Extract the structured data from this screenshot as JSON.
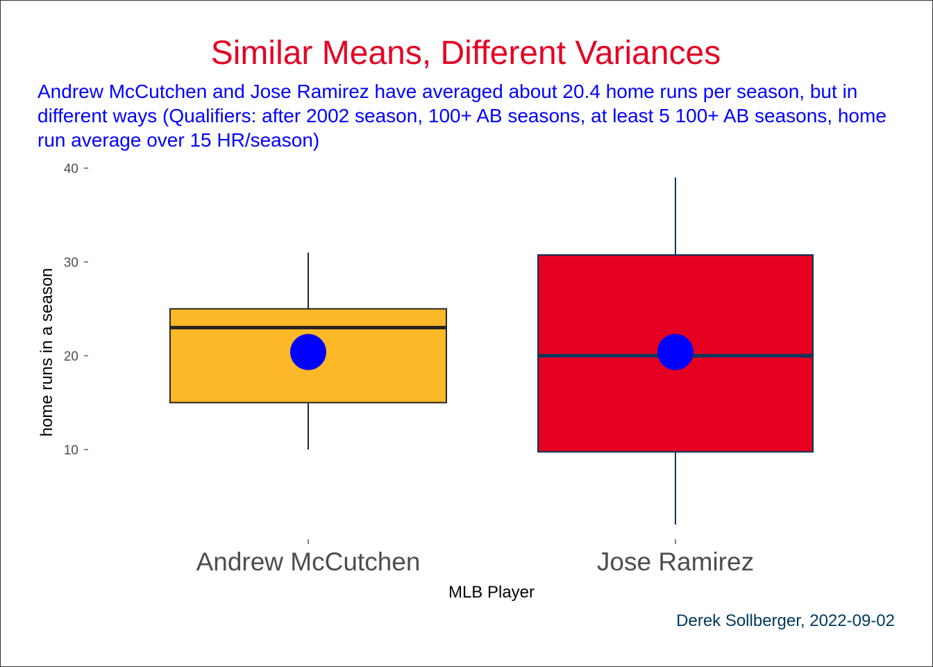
{
  "chart_data": {
    "type": "boxplot",
    "title": "Similar Means, Different Variances",
    "subtitle": "Andrew McCutchen and Jose Ramirez have averaged about 20.4 home runs per season, but in different ways (Qualifiers: after 2002 season, 100+ AB seasons, at least 5 100+ AB seasons, home run average over 15 HR/season)",
    "xlabel": "MLB Player",
    "ylabel": "home runs in a season",
    "caption": "Derek Sollberger, 2022-09-02",
    "ylim": [
      0,
      40
    ],
    "yticks": [
      10,
      20,
      30,
      40
    ],
    "grid": false,
    "categories": [
      "Andrew McCutchen",
      "Jose Ramirez"
    ],
    "boxes": [
      {
        "category": "Andrew McCutchen",
        "whisker_low": 10,
        "q1": 15,
        "median": 23,
        "q3": 25,
        "whisker_high": 31,
        "mean": 20.4,
        "fill": "#FDB827",
        "line": "#27251F"
      },
      {
        "category": "Jose Ramirez",
        "whisker_low": 2,
        "q1": 9.75,
        "median": 20,
        "q3": 30.75,
        "whisker_high": 39,
        "mean": 20.4,
        "fill": "#E50022",
        "line": "#00385D"
      }
    ],
    "mean_marker_color": "#0000FF"
  },
  "colors": {
    "title": "#E50022",
    "subtitle": "#0000FF",
    "caption": "#00385D",
    "axis_text": "#4D4D4D"
  }
}
